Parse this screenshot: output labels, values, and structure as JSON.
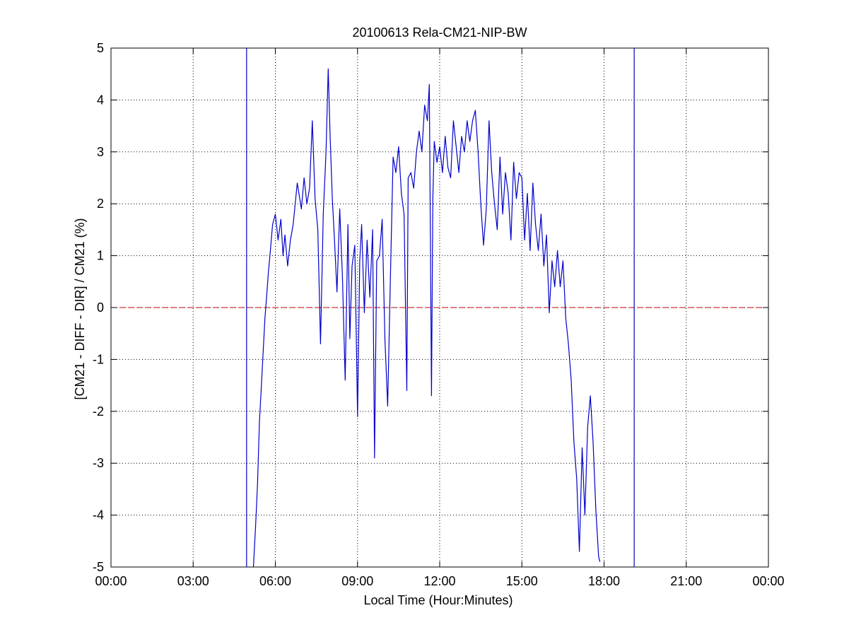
{
  "chart_data": {
    "type": "line",
    "title": "20100613 Rela-CM21-NIP-BW",
    "xlabel": "Local Time (Hour:Minutes)",
    "ylabel": "[CM21 - DIFF - DIR] / CM21 (%)",
    "xlim": [
      0,
      24
    ],
    "ylim": [
      -5,
      5
    ],
    "x_ticks": [
      0,
      3,
      6,
      9,
      12,
      15,
      18,
      21,
      24
    ],
    "x_tick_labels": [
      "00:00",
      "03:00",
      "06:00",
      "09:00",
      "12:00",
      "15:00",
      "18:00",
      "21:00",
      "00:00"
    ],
    "y_ticks": [
      -5,
      -4,
      -3,
      -2,
      -1,
      0,
      1,
      2,
      3,
      4,
      5
    ],
    "y_tick_labels": [
      "-5",
      "-4",
      "-3",
      "-2",
      "-1",
      "0",
      "1",
      "2",
      "3",
      "4",
      "5"
    ],
    "grid": true,
    "reference_line": {
      "y": 0,
      "style": "dashed",
      "color": "#cc0000"
    },
    "vertical_lines": [
      {
        "x": 4.95,
        "color": "#0000cc"
      },
      {
        "x": 19.1,
        "color": "#0000cc"
      }
    ],
    "series": [
      {
        "color": "#0000cc",
        "x": [
          5.2,
          5.28,
          5.35,
          5.42,
          5.48,
          5.55,
          5.62,
          5.68,
          5.75,
          5.82,
          5.9,
          6.0,
          6.1,
          6.2,
          6.28,
          6.35,
          6.45,
          6.55,
          6.65,
          6.8,
          6.95,
          7.05,
          7.15,
          7.25,
          7.35,
          7.45,
          7.55,
          7.65,
          7.75,
          7.85,
          7.93,
          8.0,
          8.08,
          8.15,
          8.25,
          8.35,
          8.45,
          8.55,
          8.65,
          8.72,
          8.8,
          8.9,
          9.0,
          9.08,
          9.15,
          9.25,
          9.35,
          9.45,
          9.55,
          9.62,
          9.7,
          9.8,
          9.9,
          10.0,
          10.1,
          10.2,
          10.3,
          10.4,
          10.5,
          10.6,
          10.7,
          10.8,
          10.85,
          10.95,
          11.05,
          11.15,
          11.25,
          11.35,
          11.45,
          11.55,
          11.62,
          11.7,
          11.75,
          11.8,
          11.9,
          12.0,
          12.1,
          12.2,
          12.3,
          12.4,
          12.5,
          12.6,
          12.7,
          12.8,
          12.9,
          13.0,
          13.1,
          13.2,
          13.3,
          13.4,
          13.5,
          13.6,
          13.7,
          13.8,
          13.9,
          14.0,
          14.1,
          14.2,
          14.3,
          14.4,
          14.5,
          14.6,
          14.7,
          14.8,
          14.9,
          15.0,
          15.1,
          15.2,
          15.3,
          15.4,
          15.5,
          15.6,
          15.7,
          15.8,
          15.9,
          16.0,
          16.1,
          16.2,
          16.3,
          16.4,
          16.5,
          16.6,
          16.7,
          16.8,
          16.9,
          17.0,
          17.1,
          17.2,
          17.3,
          17.4,
          17.5,
          17.6,
          17.7,
          17.8,
          17.85
        ],
        "y": [
          -5.0,
          -4.2,
          -3.4,
          -2.2,
          -1.6,
          -0.9,
          -0.2,
          0.2,
          0.7,
          1.1,
          1.6,
          1.8,
          1.3,
          1.7,
          1.0,
          1.4,
          0.8,
          1.3,
          1.6,
          2.4,
          1.9,
          2.5,
          2.0,
          2.3,
          3.6,
          2.1,
          1.5,
          -0.7,
          1.8,
          3.0,
          4.6,
          3.3,
          2.1,
          1.4,
          0.3,
          1.9,
          0.6,
          -1.4,
          1.6,
          -0.6,
          0.8,
          1.2,
          -2.1,
          0.9,
          1.6,
          -0.1,
          1.3,
          0.2,
          1.5,
          -2.9,
          0.9,
          1.0,
          1.7,
          -0.6,
          -1.9,
          0.6,
          2.9,
          2.6,
          3.1,
          2.2,
          1.8,
          -1.6,
          2.5,
          2.6,
          2.3,
          3.0,
          3.4,
          3.0,
          3.9,
          3.6,
          4.3,
          -1.7,
          2.1,
          3.2,
          2.8,
          3.1,
          2.6,
          3.3,
          2.7,
          2.5,
          3.6,
          3.1,
          2.6,
          3.3,
          3.0,
          3.6,
          3.2,
          3.6,
          3.8,
          3.0,
          2.0,
          1.2,
          1.9,
          3.6,
          2.6,
          2.0,
          1.5,
          2.9,
          1.8,
          2.6,
          2.2,
          1.3,
          2.8,
          2.1,
          2.6,
          2.5,
          1.3,
          2.2,
          1.1,
          2.4,
          1.6,
          1.1,
          1.8,
          0.8,
          1.4,
          -0.1,
          0.9,
          0.4,
          1.1,
          0.4,
          0.9,
          -0.2,
          -0.7,
          -1.4,
          -2.6,
          -3.3,
          -4.7,
          -2.7,
          -4.0,
          -2.3,
          -1.7,
          -2.6,
          -3.9,
          -4.8,
          -4.9
        ]
      }
    ]
  }
}
